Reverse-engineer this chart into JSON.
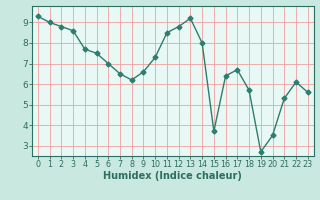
{
  "x": [
    0,
    1,
    2,
    3,
    4,
    5,
    6,
    7,
    8,
    9,
    10,
    11,
    12,
    13,
    14,
    15,
    16,
    17,
    18,
    19,
    20,
    21,
    22,
    23
  ],
  "y": [
    9.3,
    9.0,
    8.8,
    8.6,
    7.7,
    7.5,
    7.0,
    6.5,
    6.2,
    6.6,
    7.3,
    8.5,
    8.8,
    9.2,
    8.0,
    3.7,
    6.4,
    6.7,
    5.7,
    2.7,
    3.5,
    5.3,
    6.1,
    5.6
  ],
  "line_color": "#2e7d6e",
  "marker": "D",
  "markersize": 2.5,
  "linewidth": 1.0,
  "background_color": "#c8e8e0",
  "plot_bg_color": "#e8f8f4",
  "grid_color": "#f0a0a0",
  "xlabel": "Humidex (Indice chaleur)",
  "xlim": [
    -0.5,
    23.5
  ],
  "ylim": [
    2.5,
    9.8
  ],
  "yticks": [
    3,
    4,
    5,
    6,
    7,
    8,
    9
  ],
  "xticks": [
    0,
    1,
    2,
    3,
    4,
    5,
    6,
    7,
    8,
    9,
    10,
    11,
    12,
    13,
    14,
    15,
    16,
    17,
    18,
    19,
    20,
    21,
    22,
    23
  ],
  "tick_color": "#2e6e60",
  "label_color": "#2e6e60",
  "axis_color": "#2e6e60",
  "xlabel_fontsize": 7.0,
  "ytick_fontsize": 6.5,
  "xtick_fontsize": 5.8
}
